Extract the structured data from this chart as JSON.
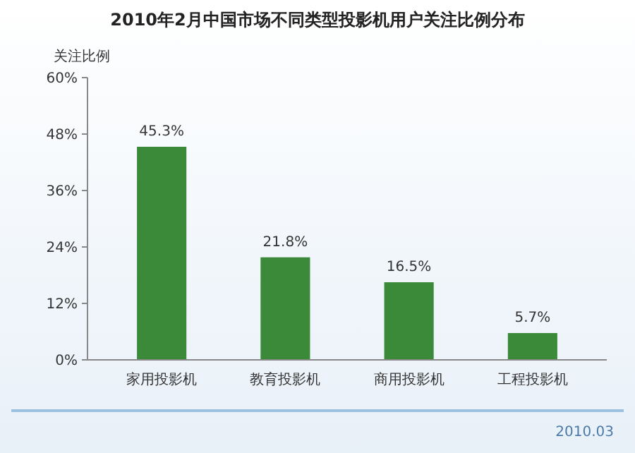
{
  "chart_data": {
    "type": "bar",
    "title": "2010年2月中国市场不同类型投影机用户关注比例分布",
    "ylabel": "关注比例",
    "categories": [
      "家用投影机",
      "教育投影机",
      "商用投影机",
      "工程投影机"
    ],
    "values": [
      45.3,
      21.8,
      16.5,
      5.7
    ],
    "color": "#3a8a3a",
    "value_labels": [
      "45.3%",
      "21.8%",
      "16.5%",
      "5.7%"
    ],
    "ylim": [
      0,
      60
    ],
    "yticks": [
      {
        "value": 0,
        "label": "0%"
      },
      {
        "value": 12,
        "label": "12%"
      },
      {
        "value": 24,
        "label": "24%"
      },
      {
        "value": 36,
        "label": "36%"
      },
      {
        "value": 48,
        "label": "48%"
      },
      {
        "value": 60,
        "label": "60%"
      }
    ],
    "annotations": [
      "2010.03"
    ]
  }
}
